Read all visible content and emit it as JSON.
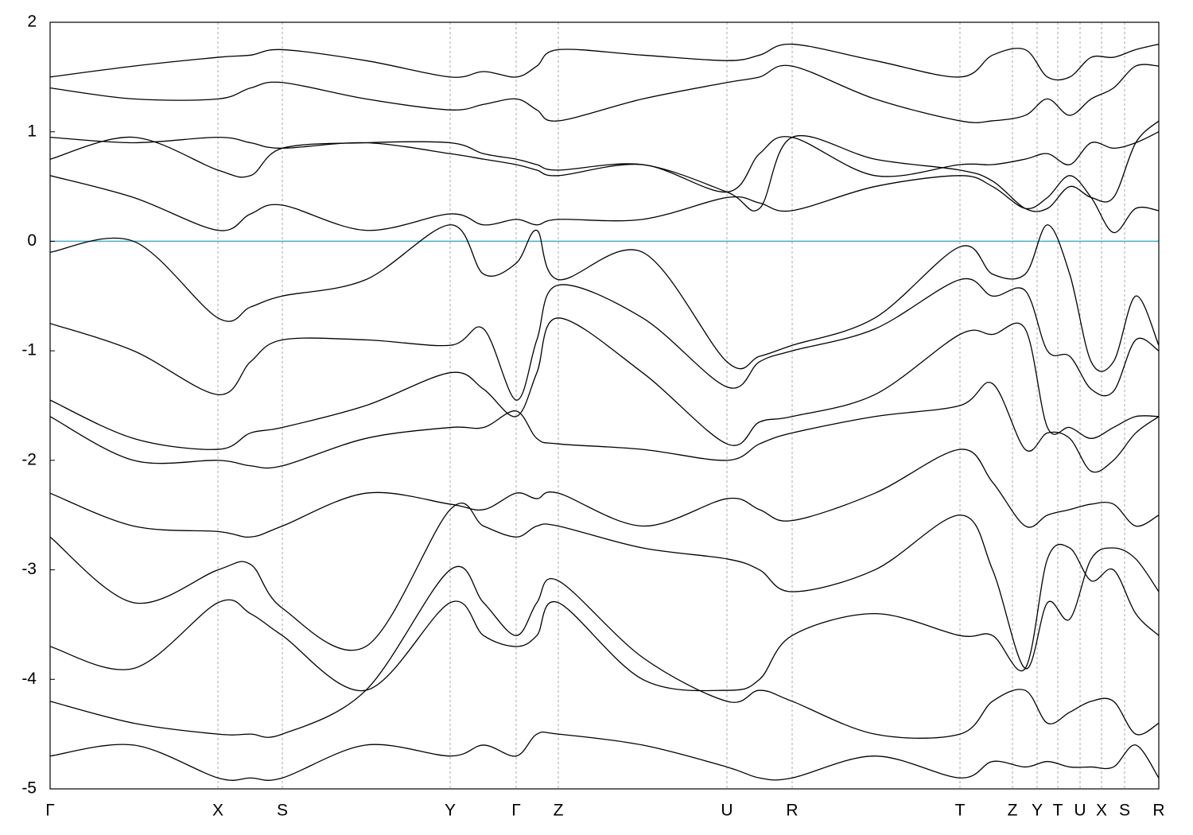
{
  "chart_data": {
    "type": "line",
    "x": [
      0,
      1.05,
      2.11,
      2.52,
      2.92,
      3.97,
      5.03,
      5.45,
      5.86,
      6.12,
      6.39,
      7.45,
      8.51,
      8.92,
      9.33,
      10.37,
      11.44,
      11.85,
      12.26,
      12.54,
      12.82,
      13.09,
      13.37,
      13.65,
      13.94
    ],
    "xlim": [
      0,
      13.94
    ],
    "xticks": [
      {
        "value": 0,
        "label": "Γ"
      },
      {
        "value": 2.11,
        "label": "X"
      },
      {
        "value": 2.92,
        "label": "S"
      },
      {
        "value": 5.03,
        "label": "Y"
      },
      {
        "value": 5.86,
        "label": "Γ"
      },
      {
        "value": 6.39,
        "label": "Z"
      },
      {
        "value": 8.51,
        "label": "U"
      },
      {
        "value": 9.33,
        "label": "R"
      },
      {
        "value": 11.44,
        "label": "T"
      },
      {
        "value": 12.1,
        "label": "Z"
      },
      {
        "value": 12.41,
        "label": "Y"
      },
      {
        "value": 12.67,
        "label": "T"
      },
      {
        "value": 12.95,
        "label": "U"
      },
      {
        "value": 13.22,
        "label": "X"
      },
      {
        "value": 13.51,
        "label": "S"
      },
      {
        "value": 13.94,
        "label": "R"
      }
    ],
    "ylim": [
      -5,
      2
    ],
    "yticks": [
      2,
      1,
      0,
      -1,
      -2,
      -3,
      -4,
      -5
    ],
    "grid": true,
    "color": "#000000",
    "reference_line": {
      "value": 0,
      "color": "#4bacc6"
    },
    "series": [
      {
        "values": [
          1.5,
          1.6,
          1.68,
          1.7,
          1.75,
          1.65,
          1.5,
          1.55,
          1.5,
          1.6,
          1.75,
          1.7,
          1.65,
          1.7,
          1.8,
          1.65,
          1.5,
          1.7,
          1.75,
          1.5,
          1.5,
          1.68,
          1.68,
          1.75,
          1.8
        ]
      },
      {
        "values": [
          1.4,
          1.3,
          1.3,
          1.4,
          1.45,
          1.3,
          1.2,
          1.25,
          1.3,
          1.2,
          1.1,
          1.3,
          1.45,
          1.5,
          1.6,
          1.3,
          1.1,
          1.1,
          1.15,
          1.3,
          1.15,
          1.3,
          1.4,
          1.6,
          1.6
        ]
      },
      {
        "values": [
          0.95,
          0.9,
          0.95,
          0.9,
          0.85,
          0.9,
          0.8,
          0.75,
          0.7,
          0.65,
          0.6,
          0.7,
          0.45,
          0.8,
          0.95,
          0.6,
          0.7,
          0.7,
          0.75,
          0.8,
          0.7,
          0.9,
          0.85,
          0.9,
          1.0
        ]
      },
      {
        "values": [
          0.6,
          0.4,
          0.1,
          0.25,
          0.33,
          0.1,
          0.25,
          0.15,
          0.2,
          0.15,
          0.2,
          0.2,
          0.4,
          0.35,
          0.28,
          0.5,
          0.6,
          0.5,
          0.3,
          0.4,
          0.6,
          0.4,
          0.08,
          0.3,
          0.28
        ]
      },
      {
        "values": [
          0.75,
          0.95,
          0.65,
          0.6,
          0.85,
          0.9,
          0.9,
          0.8,
          0.75,
          0.7,
          0.65,
          0.7,
          0.45,
          0.3,
          0.95,
          0.75,
          0.65,
          0.55,
          0.3,
          0.3,
          0.5,
          0.4,
          0.4,
          0.9,
          1.1
        ]
      },
      {
        "values": [
          -0.1,
          0.0,
          -0.7,
          -0.6,
          -0.5,
          -0.35,
          0.15,
          -0.3,
          -0.2,
          0.1,
          -0.35,
          -0.1,
          -1.1,
          -1.05,
          -0.95,
          -0.7,
          -0.05,
          -0.3,
          -0.3,
          0.15,
          -0.3,
          -1.1,
          -1.1,
          -0.5,
          -0.95
        ]
      },
      {
        "values": [
          -0.75,
          -1.0,
          -1.4,
          -1.1,
          -0.9,
          -0.9,
          -0.95,
          -0.8,
          -1.45,
          -0.9,
          -0.4,
          -0.7,
          -1.33,
          -1.1,
          -1.0,
          -0.8,
          -0.35,
          -0.5,
          -0.45,
          -1.0,
          -1.05,
          -1.35,
          -1.37,
          -0.9,
          -1.0
        ]
      },
      {
        "values": [
          -1.45,
          -1.8,
          -1.9,
          -1.75,
          -1.7,
          -1.5,
          -1.2,
          -1.35,
          -1.6,
          -1.2,
          -0.7,
          -1.2,
          -1.85,
          -1.65,
          -1.6,
          -1.4,
          -0.85,
          -0.85,
          -0.8,
          -1.7,
          -1.7,
          -1.8,
          -1.7,
          -1.6,
          -1.6
        ]
      },
      {
        "values": [
          -1.6,
          -2.0,
          -2.0,
          -2.05,
          -2.05,
          -1.8,
          -1.7,
          -1.7,
          -1.55,
          -1.8,
          -1.85,
          -1.9,
          -2.0,
          -1.85,
          -1.75,
          -1.6,
          -1.5,
          -1.3,
          -1.9,
          -1.75,
          -1.8,
          -2.1,
          -2.0,
          -1.75,
          -1.6
        ]
      },
      {
        "values": [
          -2.3,
          -2.6,
          -2.65,
          -2.7,
          -2.6,
          -2.3,
          -2.4,
          -2.45,
          -2.3,
          -2.35,
          -2.3,
          -2.6,
          -2.35,
          -2.45,
          -2.55,
          -2.3,
          -1.9,
          -2.2,
          -2.6,
          -2.5,
          -2.45,
          -2.4,
          -2.4,
          -2.6,
          -2.5
        ]
      },
      {
        "values": [
          -2.7,
          -3.3,
          -3.0,
          -2.95,
          -3.35,
          -3.7,
          -2.45,
          -2.6,
          -2.7,
          -2.6,
          -2.6,
          -2.8,
          -2.9,
          -3.0,
          -3.2,
          -3.0,
          -2.5,
          -3.0,
          -3.9,
          -3.3,
          -3.45,
          -2.9,
          -2.8,
          -2.9,
          -3.2
        ]
      },
      {
        "values": [
          -3.7,
          -3.9,
          -3.3,
          -3.4,
          -3.6,
          -4.1,
          -3.3,
          -3.6,
          -3.7,
          -3.6,
          -3.3,
          -4.0,
          -4.1,
          -4.0,
          -3.6,
          -3.4,
          -3.6,
          -3.6,
          -3.9,
          -2.9,
          -2.8,
          -3.1,
          -3.0,
          -3.4,
          -3.6
        ]
      },
      {
        "values": [
          -4.2,
          -4.4,
          -4.5,
          -4.5,
          -4.5,
          -4.1,
          -3.0,
          -3.3,
          -3.6,
          -3.3,
          -3.1,
          -3.8,
          -4.2,
          -4.1,
          -4.2,
          -4.5,
          -4.5,
          -4.2,
          -4.1,
          -4.4,
          -4.3,
          -4.2,
          -4.2,
          -4.5,
          -4.4
        ]
      },
      {
        "values": [
          -4.7,
          -4.6,
          -4.9,
          -4.9,
          -4.9,
          -4.6,
          -4.7,
          -4.6,
          -4.7,
          -4.5,
          -4.5,
          -4.6,
          -4.8,
          -4.9,
          -4.9,
          -4.7,
          -4.9,
          -4.75,
          -4.8,
          -4.75,
          -4.8,
          -4.8,
          -4.8,
          -4.6,
          -4.9
        ]
      }
    ]
  }
}
